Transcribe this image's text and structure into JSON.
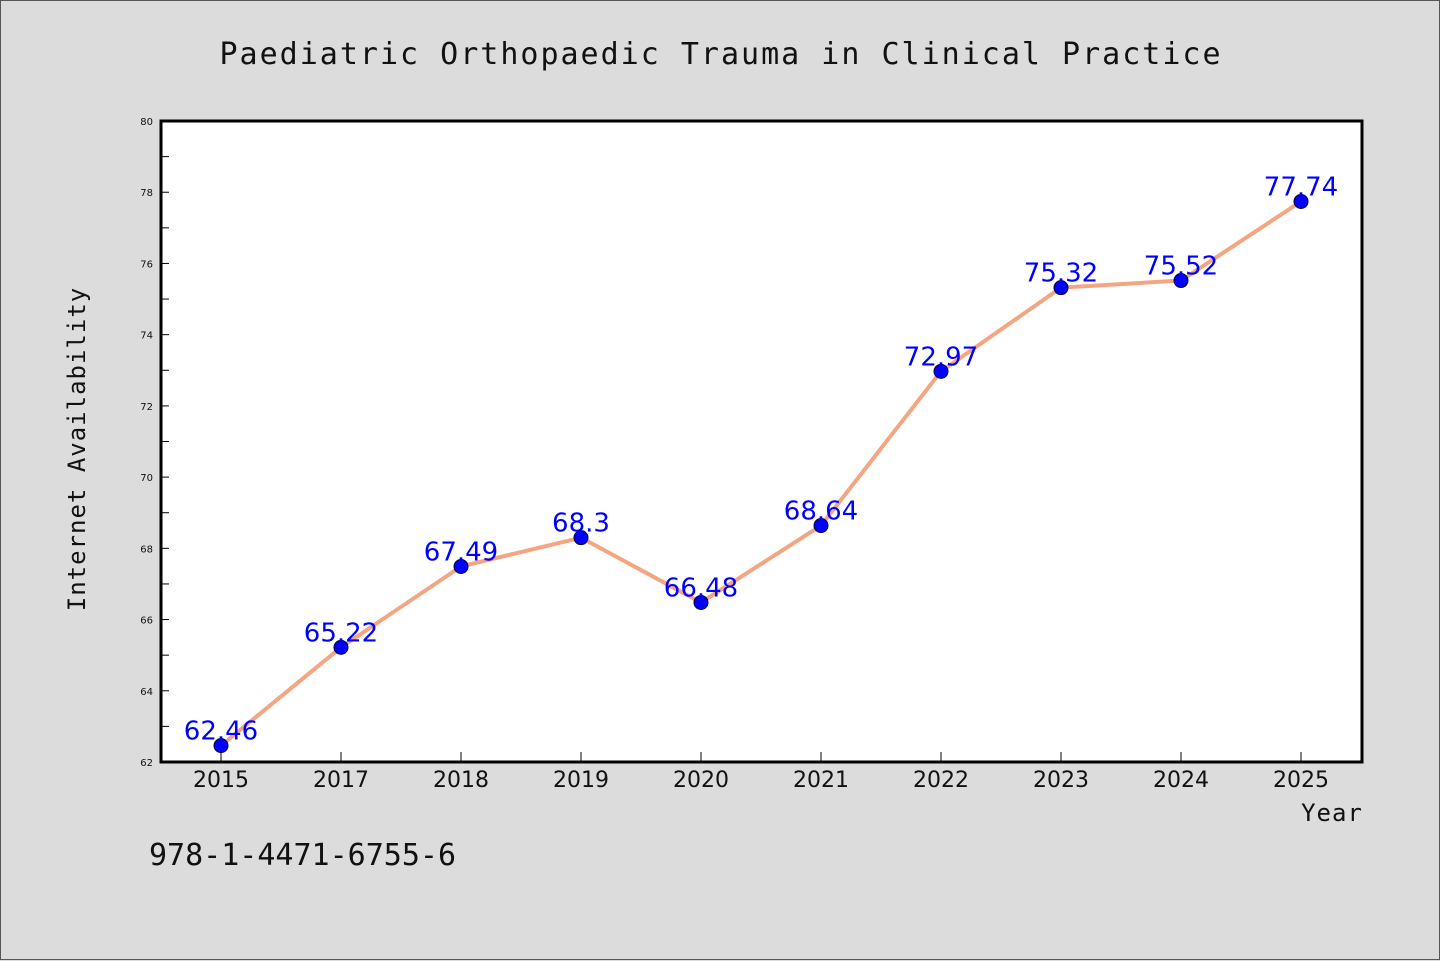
{
  "chart_data": {
    "type": "line",
    "title": "Paediatric Orthopaedic Trauma in Clinical Practice",
    "xlabel": "Year",
    "ylabel": "Internet Availability",
    "categories": [
      "2015",
      "2017",
      "2018",
      "2019",
      "2020",
      "2021",
      "2022",
      "2023",
      "2024",
      "2025"
    ],
    "series": [
      {
        "values": [
          62.46,
          65.22,
          67.49,
          68.3,
          66.48,
          68.64,
          72.97,
          75.32,
          75.52,
          77.74
        ],
        "data_labels": [
          "62.46",
          "65.22",
          "67.49",
          "68.3",
          "66.48",
          "68.64",
          "72.97",
          "75.32",
          "75.52",
          "77.74"
        ],
        "line_color": "#f4a582",
        "marker_color": "#0000ff",
        "label_color": "#0000ff"
      }
    ],
    "ylim": [
      62,
      80
    ],
    "y_ticks": [
      "62",
      "64",
      "66",
      "68",
      "70",
      "72",
      "74",
      "76",
      "78",
      "80"
    ],
    "grid": false,
    "legend": "none",
    "background_color": "#dcdcdc",
    "plot_background_color": "#ffffff"
  },
  "footnote": "978-1-4471-6755-6"
}
